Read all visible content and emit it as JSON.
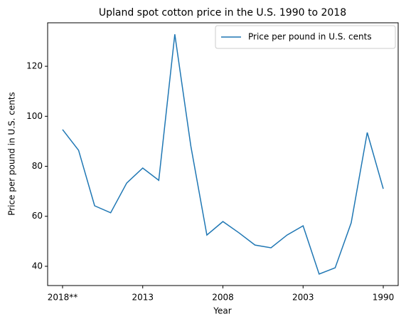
{
  "chart_data": {
    "type": "line",
    "title": "Upland spot cotton price in the U.S. 1990 to 2018",
    "x_label": "Year",
    "y_label": "Price per pound in U.S. cents",
    "categories": [
      "2018**",
      null,
      null,
      null,
      null,
      "2013",
      null,
      null,
      null,
      null,
      "2008",
      null,
      null,
      null,
      null,
      "2003",
      null,
      null,
      null,
      null,
      "1990"
    ],
    "series": [
      {
        "name": "Price per pound in U.S. cents",
        "color": "#1f77b4",
        "values": [
          94.7,
          86.4,
          64.2,
          61.4,
          73.3,
          79.3,
          74.4,
          132.8,
          88.1,
          52.5,
          57.9,
          53.4,
          48.5,
          47.4,
          52.5,
          56.2,
          36.9,
          39.4,
          57.4,
          93.5,
          71.0
        ]
      }
    ],
    "xlim": [
      -0.93,
      20.93
    ],
    "ylim": [
      32.3,
      137.4
    ],
    "yticks": [
      40,
      60,
      80,
      100,
      120
    ],
    "legend": "upper right"
  }
}
